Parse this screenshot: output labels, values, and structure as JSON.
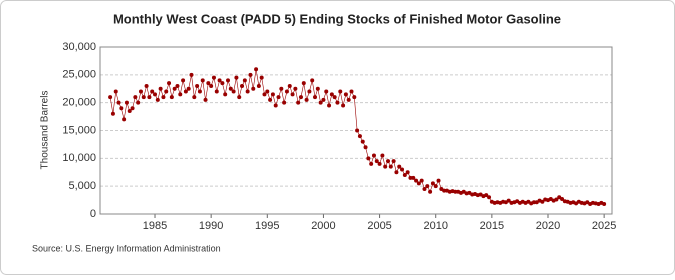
{
  "chart_data": {
    "type": "line",
    "title": "Monthly West Coast (PADD 5) Ending Stocks of Finished Motor Gasoline",
    "y_label": "Thousand Barrels",
    "source": "Source: U.S. Energy Information Administration",
    "color": "#990000",
    "xlim": [
      1980.1,
      2025.7
    ],
    "xticks": [
      1985,
      1990,
      1995,
      2000,
      2005,
      2010,
      2015,
      2020,
      2025
    ],
    "ylim": [
      0,
      30000
    ],
    "yticks": [
      0,
      {
        "value": 5000,
        "label": "5,000"
      },
      {
        "value": 10000,
        "label": "10,000"
      },
      {
        "value": 15000,
        "label": "15,000"
      },
      {
        "value": 20000,
        "label": "20,000"
      },
      {
        "value": 25000,
        "label": "25,000"
      },
      {
        "value": 30000,
        "label": "30,000"
      }
    ],
    "grid": true,
    "x": [
      1981,
      1981.25,
      1981.5,
      1981.75,
      1982,
      1982.25,
      1982.5,
      1982.75,
      1983,
      1983.25,
      1983.5,
      1983.75,
      1984,
      1984.25,
      1984.5,
      1984.75,
      1985,
      1985.25,
      1985.5,
      1985.75,
      1986,
      1986.25,
      1986.5,
      1986.75,
      1987,
      1987.25,
      1987.5,
      1987.75,
      1988,
      1988.25,
      1988.5,
      1988.75,
      1989,
      1989.25,
      1989.5,
      1989.75,
      1990,
      1990.25,
      1990.5,
      1990.75,
      1991,
      1991.25,
      1991.5,
      1991.75,
      1992,
      1992.25,
      1992.5,
      1992.75,
      1993,
      1993.25,
      1993.5,
      1993.75,
      1994,
      1994.25,
      1994.5,
      1994.75,
      1995,
      1995.25,
      1995.5,
      1995.75,
      1996,
      1996.25,
      1996.5,
      1996.75,
      1997,
      1997.25,
      1997.5,
      1997.75,
      1998,
      1998.25,
      1998.5,
      1998.75,
      1999,
      1999.25,
      1999.5,
      1999.75,
      2000,
      2000.25,
      2000.5,
      2000.75,
      2001,
      2001.25,
      2001.5,
      2001.75,
      2002,
      2002.25,
      2002.5,
      2002.75,
      2003,
      2003.25,
      2003.5,
      2003.75,
      2004,
      2004.25,
      2004.5,
      2004.75,
      2005,
      2005.25,
      2005.5,
      2005.75,
      2006,
      2006.25,
      2006.5,
      2006.75,
      2007,
      2007.25,
      2007.5,
      2007.75,
      2008,
      2008.25,
      2008.5,
      2008.75,
      2009,
      2009.25,
      2009.5,
      2009.75,
      2010,
      2010.25,
      2010.5,
      2010.75,
      2011,
      2011.25,
      2011.5,
      2011.75,
      2012,
      2012.25,
      2012.5,
      2012.75,
      2013,
      2013.25,
      2013.5,
      2013.75,
      2014,
      2014.25,
      2014.5,
      2014.75,
      2015,
      2015.25,
      2015.5,
      2015.75,
      2016,
      2016.25,
      2016.5,
      2016.75,
      2017,
      2017.25,
      2017.5,
      2017.75,
      2018,
      2018.25,
      2018.5,
      2018.75,
      2019,
      2019.25,
      2019.5,
      2019.75,
      2020,
      2020.25,
      2020.5,
      2020.75,
      2021,
      2021.25,
      2021.5,
      2021.75,
      2022,
      2022.25,
      2022.5,
      2022.75,
      2023,
      2023.25,
      2023.5,
      2023.75,
      2024,
      2024.25,
      2024.5,
      2024.75,
      2025
    ],
    "values": [
      21000,
      18000,
      22000,
      20000,
      19000,
      17000,
      20000,
      18500,
      19000,
      21000,
      20000,
      22000,
      21000,
      23000,
      21000,
      22000,
      21500,
      20500,
      22500,
      21000,
      22000,
      23500,
      21000,
      22500,
      23000,
      21500,
      24000,
      22000,
      22500,
      25000,
      21000,
      23000,
      22000,
      24000,
      20500,
      23500,
      23000,
      24500,
      22000,
      24000,
      23500,
      21500,
      24000,
      22500,
      22000,
      24500,
      21000,
      23000,
      24000,
      22000,
      25000,
      22500,
      26000,
      23000,
      24500,
      21500,
      22000,
      20500,
      21500,
      19500,
      21000,
      22500,
      20000,
      22000,
      23000,
      21500,
      22500,
      20000,
      21000,
      23500,
      20500,
      22000,
      24000,
      21000,
      22500,
      20000,
      20500,
      22000,
      19500,
      21500,
      21000,
      20000,
      22000,
      19500,
      21500,
      20500,
      22000,
      21000,
      15000,
      14000,
      13000,
      12000,
      10000,
      9000,
      10500,
      9500,
      9000,
      10500,
      8500,
      9500,
      8500,
      9500,
      7500,
      8500,
      8000,
      7000,
      7500,
      6500,
      6500,
      6000,
      5500,
      6000,
      4500,
      5000,
      4000,
      5500,
      5000,
      6000,
      4500,
      4200,
      4200,
      4000,
      4100,
      4000,
      4000,
      3800,
      4000,
      3700,
      3800,
      3500,
      3600,
      3400,
      3500,
      3200,
      3400,
      3000,
      2200,
      2000,
      2100,
      2000,
      2200,
      2100,
      2400,
      2000,
      2100,
      2300,
      2000,
      2200,
      2000,
      2200,
      1900,
      2100,
      2100,
      2400,
      2200,
      2600,
      2500,
      2700,
      2400,
      2600,
      3000,
      2700,
      2300,
      2200,
      2000,
      2100,
      1900,
      2200,
      2000,
      1900,
      2100,
      1800,
      2000,
      1900,
      1800,
      2000,
      1800
    ]
  }
}
